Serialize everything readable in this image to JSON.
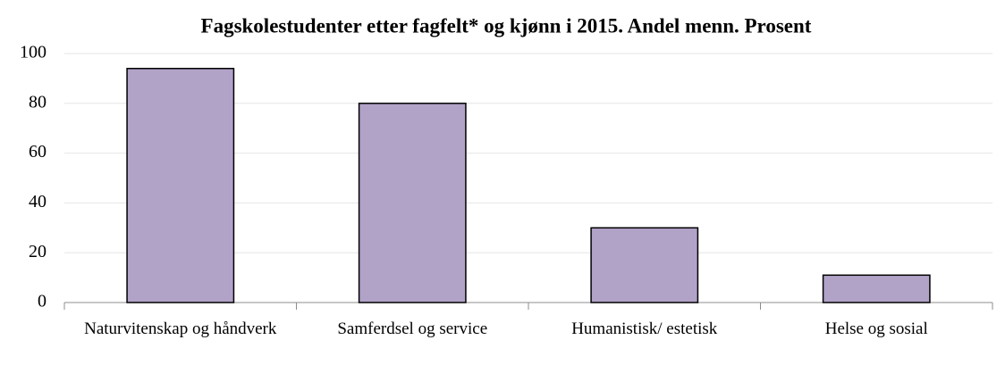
{
  "chart_data": {
    "type": "bar",
    "title": "Fagskolestudenter etter fagfelt* og kjønn i 2015. Andel menn. Prosent",
    "categories": [
      "Naturvitenskap og håndverk",
      "Samferdsel og service",
      "Humanistisk/ estetisk",
      "Helse og sosial"
    ],
    "values": [
      94,
      80,
      30,
      11
    ],
    "color": "#b1a2c8",
    "ylim": [
      0,
      100
    ],
    "yticks": [
      0,
      20,
      40,
      60,
      80,
      100
    ],
    "grid": true
  }
}
